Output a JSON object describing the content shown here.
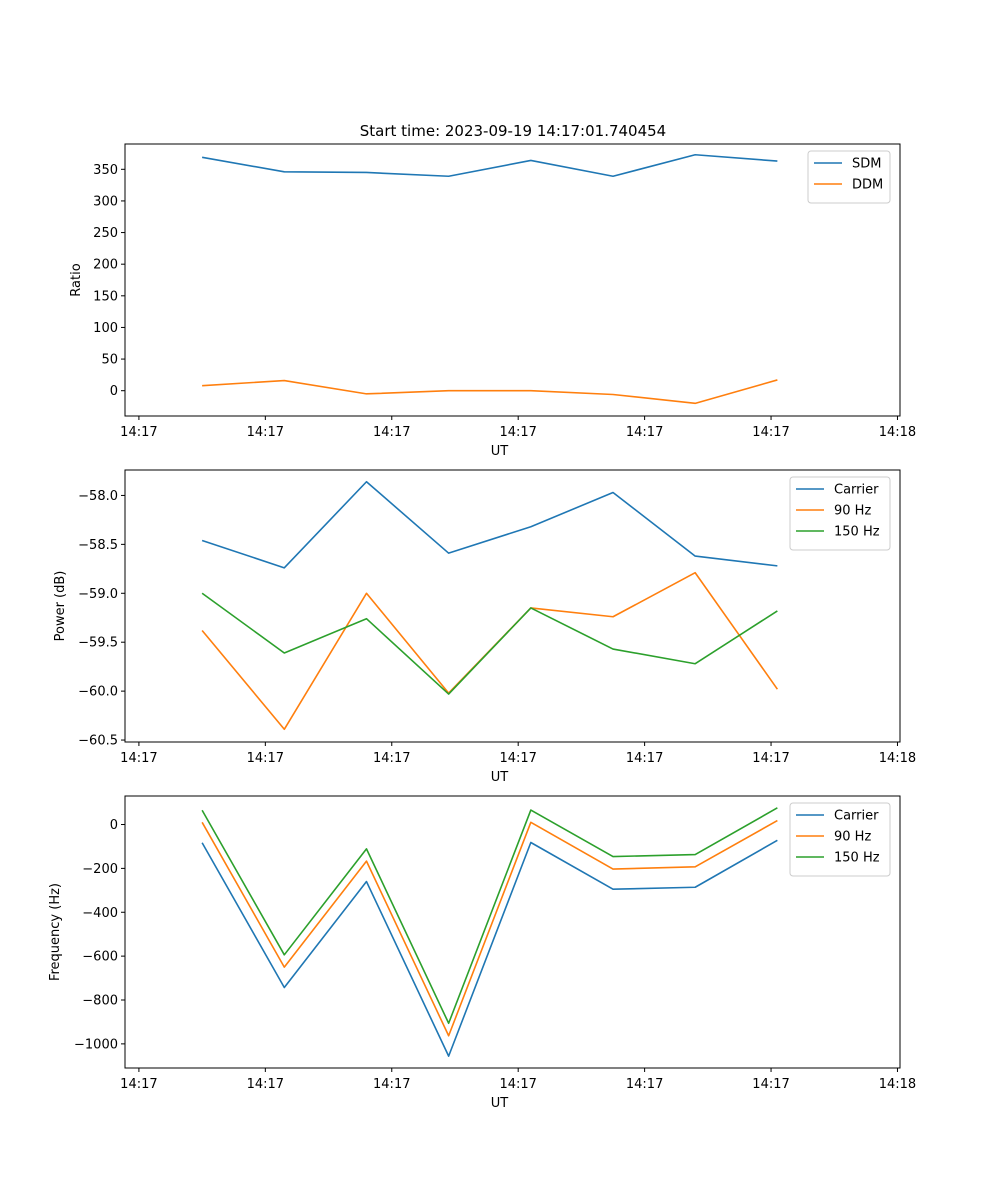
{
  "figure_title": "Start time: 2023-09-19 14:17:01.740454",
  "chart_data": [
    {
      "type": "line",
      "name": "ratio-chart",
      "xlabel": "UT",
      "ylabel": "Ratio",
      "x_tick_labels": [
        "14:17",
        "14:17",
        "14:17",
        "14:17",
        "14:17",
        "14:17",
        "14:18"
      ],
      "x_ticks": [
        0,
        1,
        2,
        3,
        4,
        5,
        6
      ],
      "xlim": [
        -0.11,
        6.02
      ],
      "x": [
        0.5,
        1.15,
        1.8,
        2.45,
        3.1,
        3.75,
        4.4,
        5.05
      ],
      "ylim": [
        -40,
        390
      ],
      "y_ticks": [
        0,
        50,
        100,
        150,
        200,
        250,
        300,
        350
      ],
      "y_tick_labels": [
        "0",
        "50",
        "100",
        "150",
        "200",
        "250",
        "300",
        "350"
      ],
      "legend_position": "top-right",
      "series": [
        {
          "name": "SDM",
          "color": "#1f77b4",
          "values": [
            369,
            346,
            345,
            339,
            364,
            339,
            373,
            363
          ]
        },
        {
          "name": "DDM",
          "color": "#ff7f0e",
          "values": [
            8,
            16,
            -5,
            0,
            0,
            -6,
            -20,
            17
          ]
        }
      ]
    },
    {
      "type": "line",
      "name": "power-chart",
      "xlabel": "UT",
      "ylabel": "Power (dB)",
      "x_tick_labels": [
        "14:17",
        "14:17",
        "14:17",
        "14:17",
        "14:17",
        "14:17",
        "14:18"
      ],
      "x_ticks": [
        0,
        1,
        2,
        3,
        4,
        5,
        6
      ],
      "xlim": [
        -0.11,
        6.02
      ],
      "x": [
        0.5,
        1.15,
        1.8,
        2.45,
        3.1,
        3.75,
        4.4,
        5.05
      ],
      "ylim": [
        -60.52,
        -57.74
      ],
      "y_ticks": [
        -60.5,
        -60.0,
        -59.5,
        -59.0,
        -58.5,
        -58.0
      ],
      "y_tick_labels": [
        "−60.5",
        "−60.0",
        "−59.5",
        "−59.0",
        "−58.5",
        "−58.0"
      ],
      "legend_position": "top-right",
      "series": [
        {
          "name": "Carrier",
          "color": "#1f77b4",
          "values": [
            -58.46,
            -58.74,
            -57.86,
            -58.59,
            -58.32,
            -57.97,
            -58.62,
            -58.72
          ]
        },
        {
          "name": "90 Hz",
          "color": "#ff7f0e",
          "values": [
            -59.38,
            -60.39,
            -59.0,
            -60.02,
            -59.15,
            -59.24,
            -58.79,
            -59.98
          ]
        },
        {
          "name": "150 Hz",
          "color": "#2ca02c",
          "values": [
            -59.0,
            -59.61,
            -59.26,
            -60.03,
            -59.15,
            -59.57,
            -59.72,
            -59.18
          ]
        }
      ]
    },
    {
      "type": "line",
      "name": "frequency-chart",
      "xlabel": "UT",
      "ylabel": "Frequency (Hz)",
      "x_tick_labels": [
        "14:17",
        "14:17",
        "14:17",
        "14:17",
        "14:17",
        "14:17",
        "14:18"
      ],
      "x_ticks": [
        0,
        1,
        2,
        3,
        4,
        5,
        6
      ],
      "xlim": [
        -0.11,
        6.02
      ],
      "x": [
        0.5,
        1.15,
        1.8,
        2.45,
        3.1,
        3.75,
        4.4,
        5.05
      ],
      "ylim": [
        -1110,
        130
      ],
      "y_ticks": [
        -1000,
        -800,
        -600,
        -400,
        -200,
        0
      ],
      "y_tick_labels": [
        "−1000",
        "−800",
        "−600",
        "−400",
        "−200",
        "0"
      ],
      "legend_position": "top-right",
      "series": [
        {
          "name": "Carrier",
          "color": "#1f77b4",
          "values": [
            -83,
            -743,
            -260,
            -1056,
            -82,
            -295,
            -286,
            -72
          ]
        },
        {
          "name": "90 Hz",
          "color": "#ff7f0e",
          "values": [
            10,
            -650,
            -167,
            -963,
            10,
            -203,
            -193,
            18
          ]
        },
        {
          "name": "150 Hz",
          "color": "#2ca02c",
          "values": [
            65,
            -594,
            -111,
            -906,
            66,
            -146,
            -137,
            76
          ]
        }
      ]
    }
  ]
}
